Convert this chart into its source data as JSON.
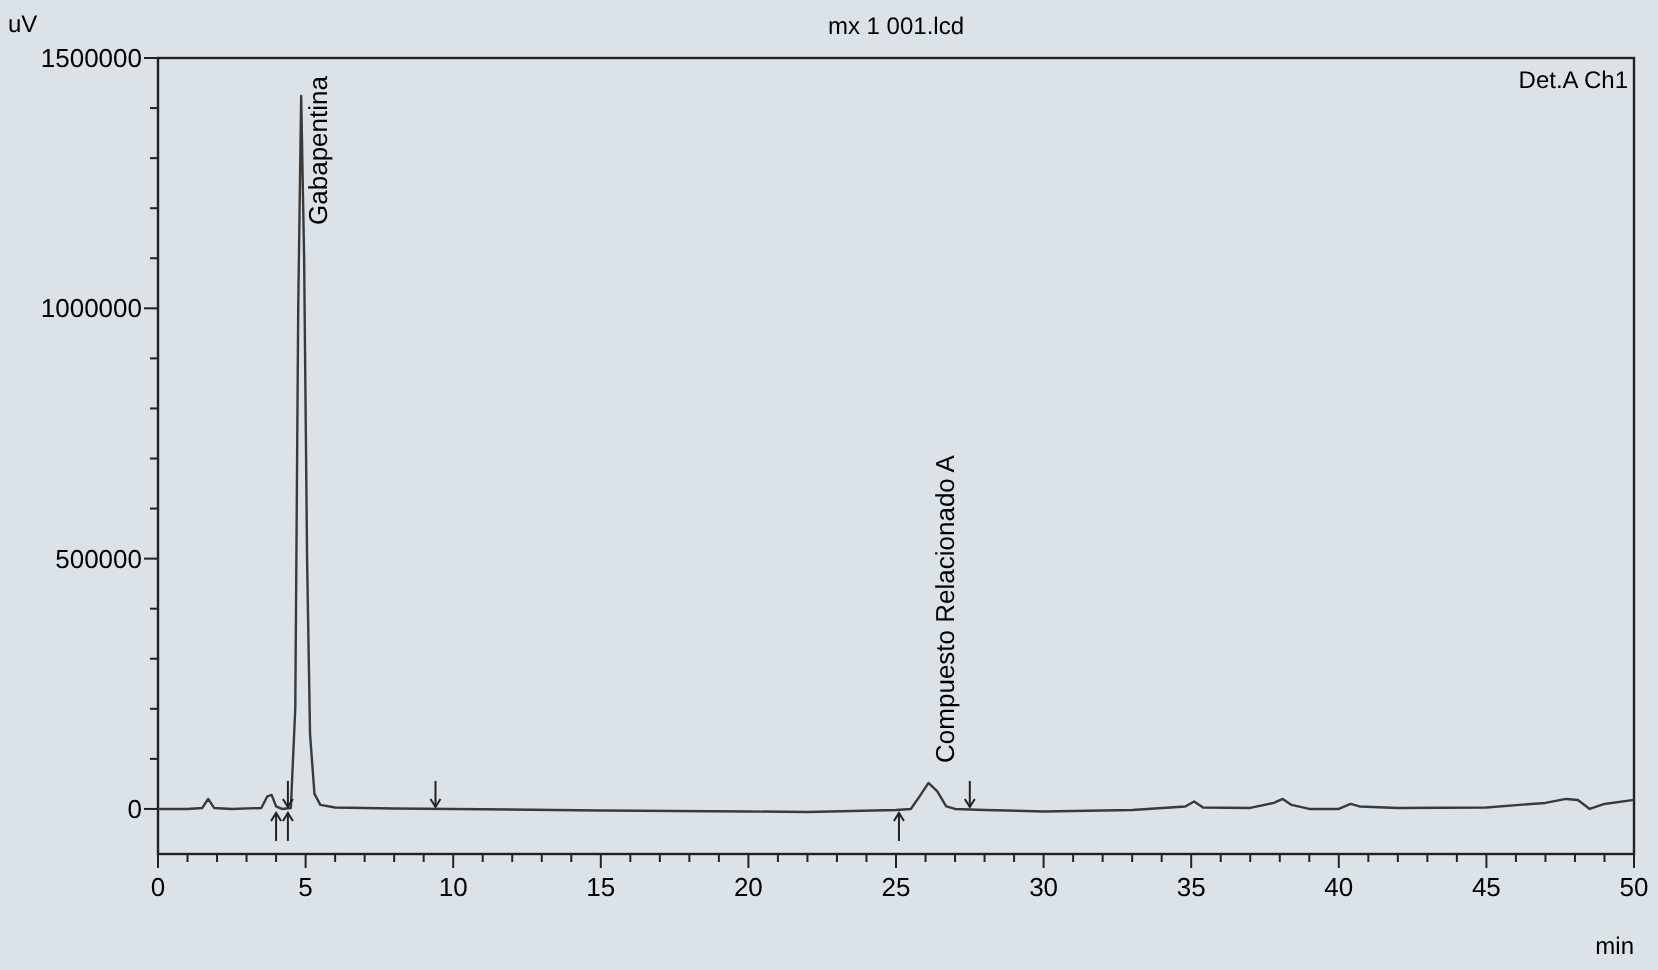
{
  "chart_data": {
    "type": "line",
    "title": "mx 1 001.lcd",
    "xlabel": "min",
    "ylabel": "uV",
    "x": [
      0,
      1.0,
      1.5,
      1.7,
      1.9,
      2.5,
      3.5,
      3.7,
      3.85,
      4.0,
      4.2,
      4.5,
      4.65,
      4.75,
      4.85,
      4.95,
      5.05,
      5.15,
      5.3,
      5.5,
      6,
      8,
      10,
      15,
      20,
      22,
      25,
      25.5,
      25.8,
      26.1,
      26.4,
      26.7,
      27,
      28,
      30,
      33,
      34.8,
      35.1,
      35.4,
      37,
      37.8,
      38.1,
      38.4,
      39,
      40,
      40.4,
      40.7,
      42,
      45,
      47,
      47.7,
      48.1,
      48.5,
      49,
      50
    ],
    "series": [
      {
        "color": "#3a3a3a",
        "values": [
          0,
          0,
          2000,
          20000,
          2000,
          0,
          2000,
          25000,
          28000,
          5000,
          0,
          2000,
          200000,
          1000000,
          1424000,
          1100000,
          500000,
          150000,
          30000,
          8000,
          3000,
          1000,
          0,
          -3000,
          -5000,
          -6000,
          -2000,
          0,
          25000,
          52000,
          35000,
          5000,
          0,
          -2000,
          -5000,
          -2000,
          5000,
          15000,
          3000,
          2000,
          12000,
          20000,
          8000,
          0,
          0,
          10000,
          5000,
          2000,
          3000,
          12000,
          20000,
          18000,
          0,
          10000,
          18000
        ]
      }
    ],
    "xlim": [
      0,
      50
    ],
    "xticks": [
      0,
      {
        "value": 1,
        "label": null
      },
      {
        "value": 2,
        "label": null
      },
      {
        "value": 3,
        "label": null
      },
      {
        "value": 4,
        "label": null
      },
      5,
      {
        "value": 6,
        "label": null
      },
      {
        "value": 7,
        "label": null
      },
      {
        "value": 8,
        "label": null
      },
      {
        "value": 9,
        "label": null
      },
      10,
      {
        "value": 11,
        "label": null
      },
      {
        "value": 12,
        "label": null
      },
      {
        "value": 13,
        "label": null
      },
      {
        "value": 14,
        "label": null
      },
      15,
      {
        "value": 16,
        "label": null
      },
      {
        "value": 17,
        "label": null
      },
      {
        "value": 18,
        "label": null
      },
      {
        "value": 19,
        "label": null
      },
      20,
      {
        "value": 21,
        "label": null
      },
      {
        "value": 22,
        "label": null
      },
      {
        "value": 23,
        "label": null
      },
      {
        "value": 24,
        "label": null
      },
      25,
      {
        "value": 26,
        "label": null
      },
      {
        "value": 27,
        "label": null
      },
      {
        "value": 28,
        "label": null
      },
      {
        "value": 29,
        "label": null
      },
      30,
      {
        "value": 31,
        "label": null
      },
      {
        "value": 32,
        "label": null
      },
      {
        "value": 33,
        "label": null
      },
      {
        "value": 34,
        "label": null
      },
      35,
      {
        "value": 36,
        "label": null
      },
      {
        "value": 37,
        "label": null
      },
      {
        "value": 38,
        "label": null
      },
      {
        "value": 39,
        "label": null
      },
      40,
      {
        "value": 41,
        "label": null
      },
      {
        "value": 42,
        "label": null
      },
      {
        "value": 43,
        "label": null
      },
      {
        "value": 44,
        "label": null
      },
      45,
      {
        "value": 46,
        "label": null
      },
      {
        "value": 47,
        "label": null
      },
      {
        "value": 48,
        "label": null
      },
      {
        "value": 49,
        "label": null
      },
      50
    ],
    "ylim": [
      -90000,
      1500000
    ],
    "yticks": [
      0,
      {
        "value": 100000,
        "label": null
      },
      {
        "value": 200000,
        "label": null
      },
      {
        "value": 300000,
        "label": null
      },
      {
        "value": 400000,
        "label": null
      },
      500000,
      {
        "value": 600000,
        "label": null
      },
      {
        "value": 700000,
        "label": null
      },
      {
        "value": 800000,
        "label": null
      },
      {
        "value": 900000,
        "label": null
      },
      1000000,
      {
        "value": 1100000,
        "label": null
      },
      {
        "value": 1200000,
        "label": null
      },
      {
        "value": 1300000,
        "label": null
      },
      {
        "value": 1400000,
        "label": null
      },
      1500000
    ],
    "grid": false,
    "line_style": "solid",
    "annotations": [
      {
        "text": "Gabapentina",
        "x": 4.85,
        "y": 1424000
      },
      {
        "text": "Compuesto Relacionado A",
        "x": 26.1,
        "y": 52000
      },
      "Det.A Ch1"
    ]
  }
}
